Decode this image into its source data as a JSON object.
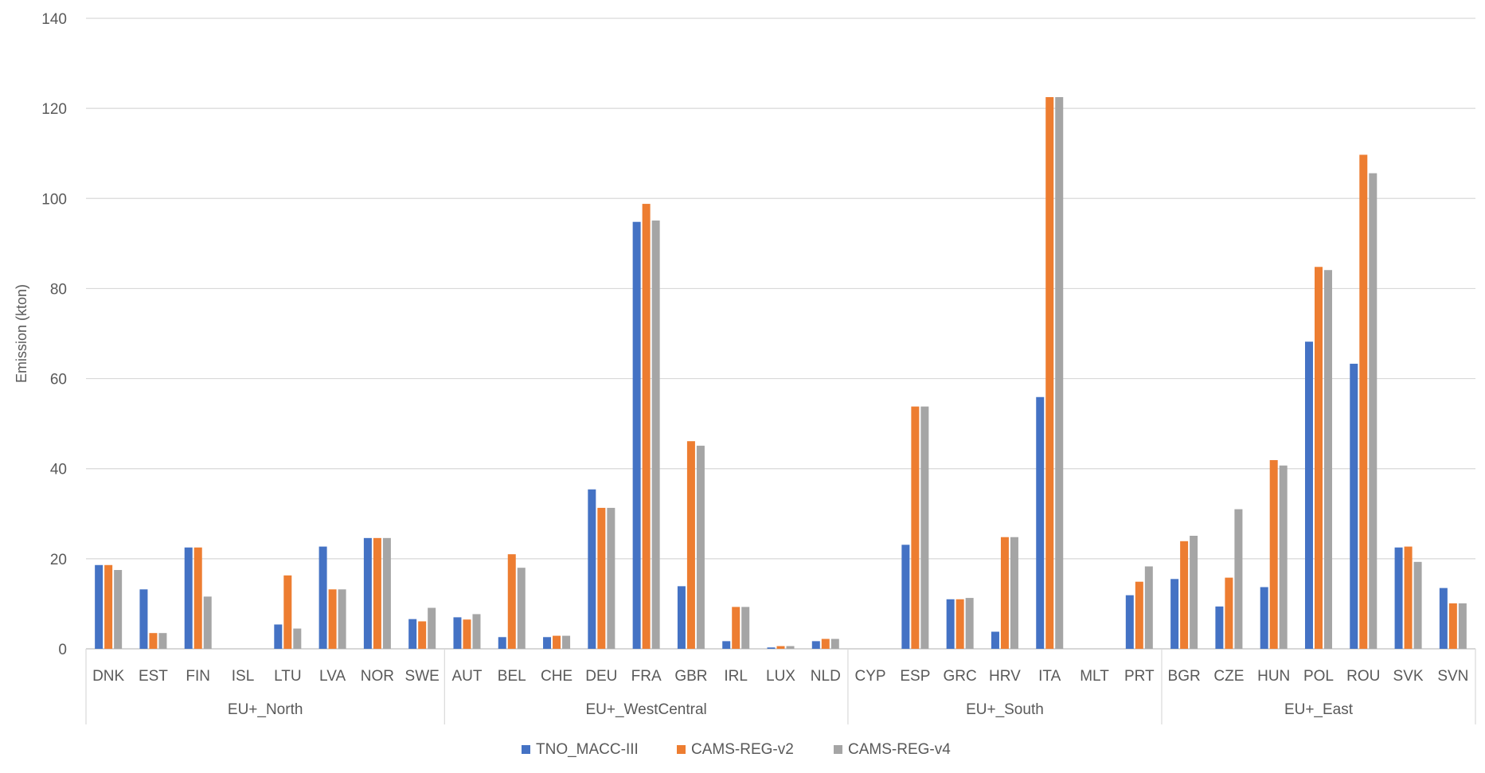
{
  "chart_data": {
    "type": "bar",
    "ylabel": "Emission (kton)",
    "ylim": [
      0,
      140
    ],
    "yticks": [
      0,
      20,
      40,
      60,
      80,
      100,
      120,
      140
    ],
    "grid": true,
    "legend_position": "bottom",
    "categories": [
      "DNK",
      "EST",
      "FIN",
      "ISL",
      "LTU",
      "LVA",
      "NOR",
      "SWE",
      "AUT",
      "BEL",
      "CHE",
      "DEU",
      "FRA",
      "GBR",
      "IRL",
      "LUX",
      "NLD",
      "CYP",
      "ESP",
      "GRC",
      "HRV",
      "ITA",
      "MLT",
      "PRT",
      "BGR",
      "CZE",
      "HUN",
      "POL",
      "ROU",
      "SVK",
      "SVN"
    ],
    "groups": [
      {
        "name": "EU+_North",
        "count": 8
      },
      {
        "name": "EU+_WestCentral",
        "count": 9
      },
      {
        "name": "EU+_South",
        "count": 7
      },
      {
        "name": "EU+_East",
        "count": 7
      }
    ],
    "series": [
      {
        "name": "TNO_MACC-III",
        "color": "#4472C4",
        "values": [
          18.6,
          13.2,
          22.5,
          0,
          5.4,
          22.7,
          24.6,
          6.6,
          7.0,
          2.6,
          2.6,
          35.4,
          94.8,
          13.9,
          1.7,
          0.3,
          1.7,
          0,
          23.1,
          11.0,
          3.8,
          55.9,
          0,
          11.9,
          15.5,
          9.4,
          13.7,
          68.2,
          63.3,
          22.5,
          13.5
        ]
      },
      {
        "name": "CAMS-REG-v2",
        "color": "#ED7D31",
        "values": [
          18.6,
          3.5,
          22.5,
          0,
          16.3,
          13.2,
          24.6,
          6.1,
          6.5,
          21.0,
          2.9,
          31.3,
          98.8,
          46.1,
          9.3,
          0.6,
          2.2,
          0,
          53.8,
          11.0,
          24.8,
          122.5,
          0,
          14.9,
          23.9,
          15.8,
          41.9,
          84.8,
          109.7,
          22.7,
          10.1
        ]
      },
      {
        "name": "CAMS-REG-v4",
        "color": "#A5A5A5",
        "values": [
          17.5,
          3.5,
          11.6,
          0,
          4.5,
          13.2,
          24.6,
          9.1,
          7.7,
          18.0,
          2.9,
          31.3,
          95.1,
          45.1,
          9.3,
          0.6,
          2.2,
          0,
          53.8,
          11.3,
          24.8,
          122.5,
          0,
          18.3,
          25.1,
          31.0,
          40.7,
          84.1,
          105.6,
          19.3,
          10.1
        ]
      }
    ]
  }
}
